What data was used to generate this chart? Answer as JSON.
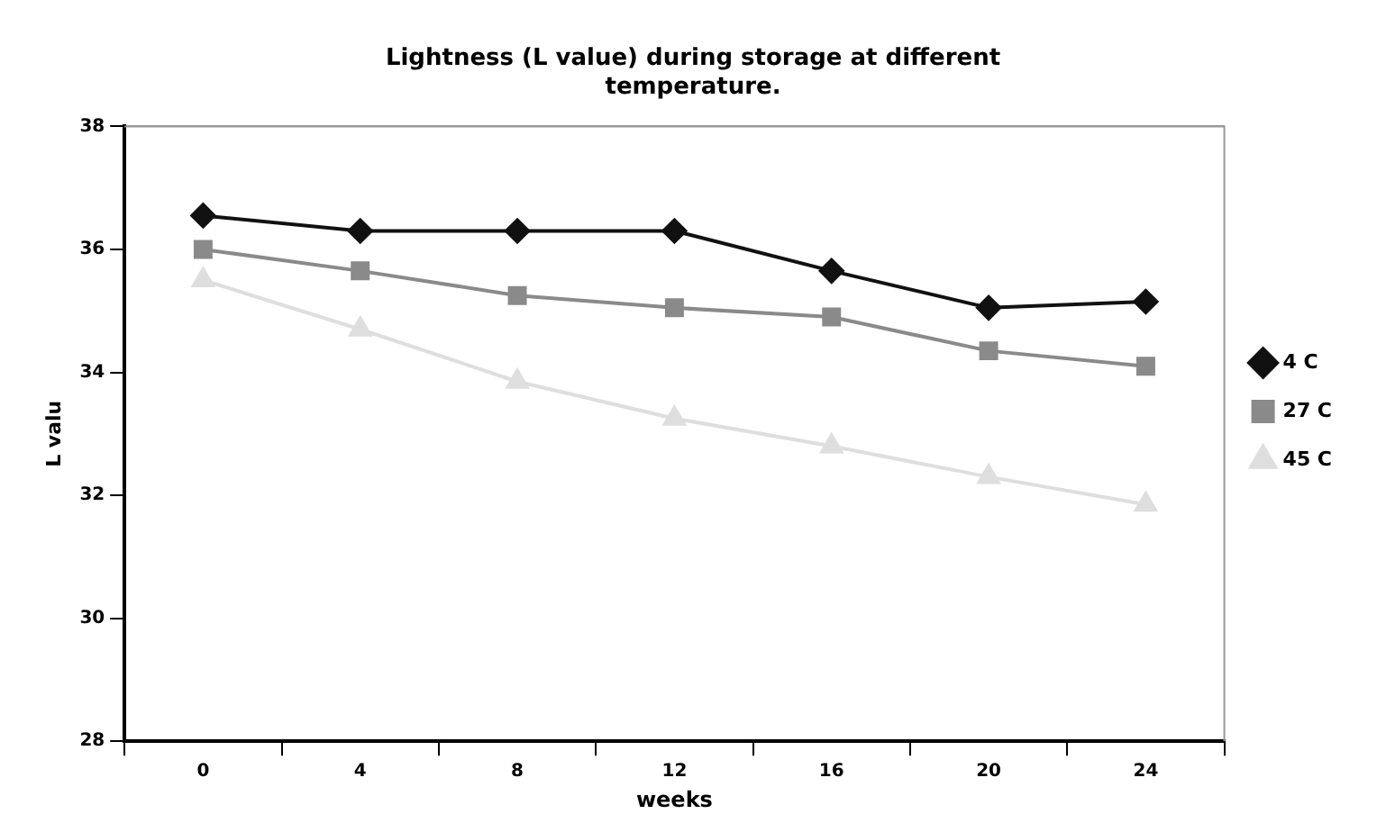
{
  "chart_data": {
    "type": "line",
    "title": [
      "Lightness (L value) during storage at different",
      "temperature."
    ],
    "xlabel": "weeks",
    "ylabel": "L valu",
    "categories": [
      "0",
      "4",
      "8",
      "12",
      "16",
      "20",
      "24"
    ],
    "series": [
      {
        "name": "4 C",
        "color": "#111111",
        "marker": "diamond",
        "values": [
          36.55,
          36.3,
          36.3,
          36.3,
          35.65,
          35.05,
          35.15
        ]
      },
      {
        "name": "27 C",
        "color": "#8a8a8a",
        "marker": "square",
        "values": [
          36.0,
          35.65,
          35.25,
          35.05,
          34.9,
          34.35,
          34.1
        ]
      },
      {
        "name": "45 C",
        "color": "#dedede",
        "marker": "triangle",
        "values": [
          35.5,
          34.7,
          33.85,
          33.25,
          32.8,
          32.3,
          31.85
        ]
      }
    ],
    "ylim": [
      28,
      38
    ],
    "yticks": [
      28,
      30,
      32,
      34,
      36,
      38
    ],
    "grid": false,
    "legend": "right"
  }
}
